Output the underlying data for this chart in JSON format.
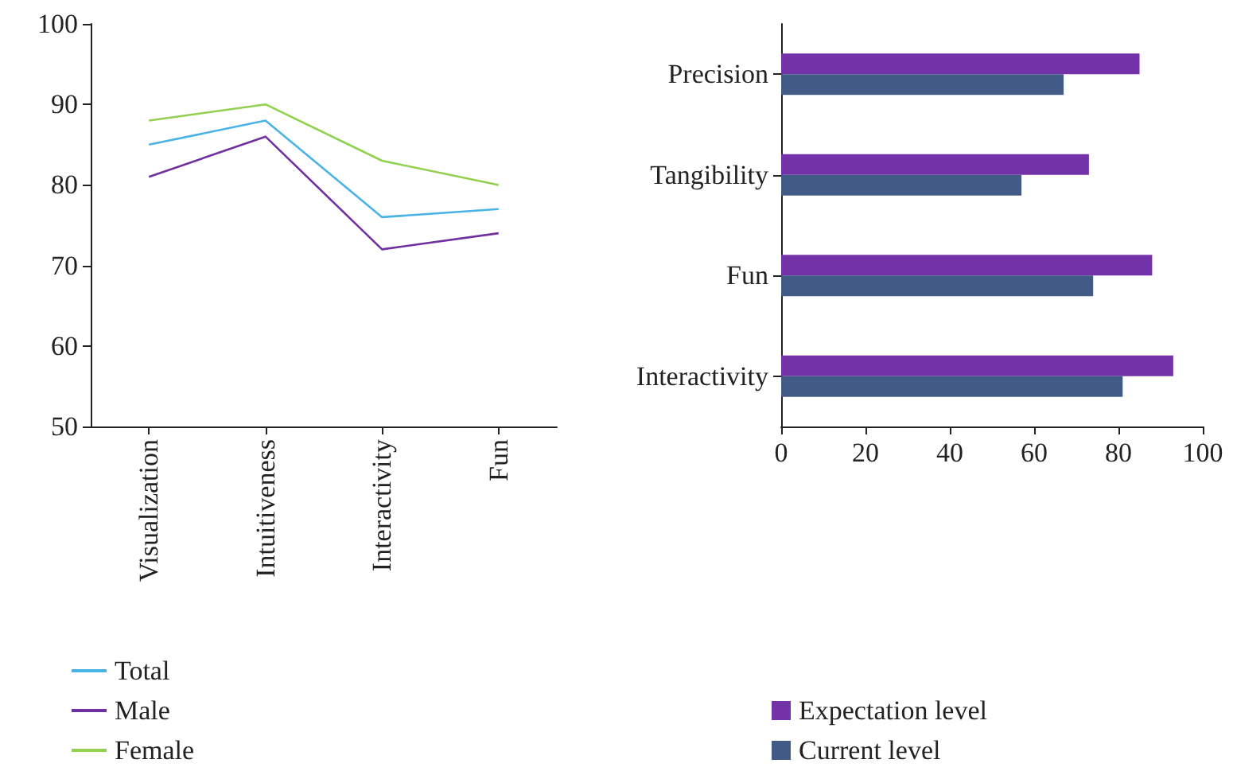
{
  "chart_data": [
    {
      "type": "line",
      "categories": [
        "Visualization",
        "Intuitiveness",
        "Interactivity",
        "Fun"
      ],
      "series": [
        {
          "name": "Total",
          "color": "#4ab3e6",
          "values": [
            85,
            88,
            76,
            77
          ]
        },
        {
          "name": "Male",
          "color": "#7030a0",
          "values": [
            81,
            86,
            72,
            74
          ]
        },
        {
          "name": "Female",
          "color": "#92d050",
          "values": [
            88,
            90,
            83,
            80
          ]
        }
      ],
      "ylim": [
        50,
        100
      ],
      "yticks": [
        50,
        60,
        70,
        80,
        90,
        100
      ],
      "grid": false,
      "legend": "bottom left",
      "marker": "none",
      "line_style": "solid"
    },
    {
      "type": "bar",
      "orientation": "horizontal",
      "categories": [
        "Precision",
        "Tangibility",
        "Fun",
        "Interactivity"
      ],
      "series": [
        {
          "name": "Expectation level",
          "color": "#7332a8",
          "values": [
            85,
            73,
            88,
            93
          ]
        },
        {
          "name": "Current level",
          "color": "#425b86",
          "values": [
            67,
            57,
            74,
            81
          ]
        }
      ],
      "xlim": [
        0,
        100
      ],
      "xticks": [
        0,
        20,
        40,
        60,
        80,
        100
      ],
      "grid": false,
      "legend": "bottom"
    }
  ]
}
